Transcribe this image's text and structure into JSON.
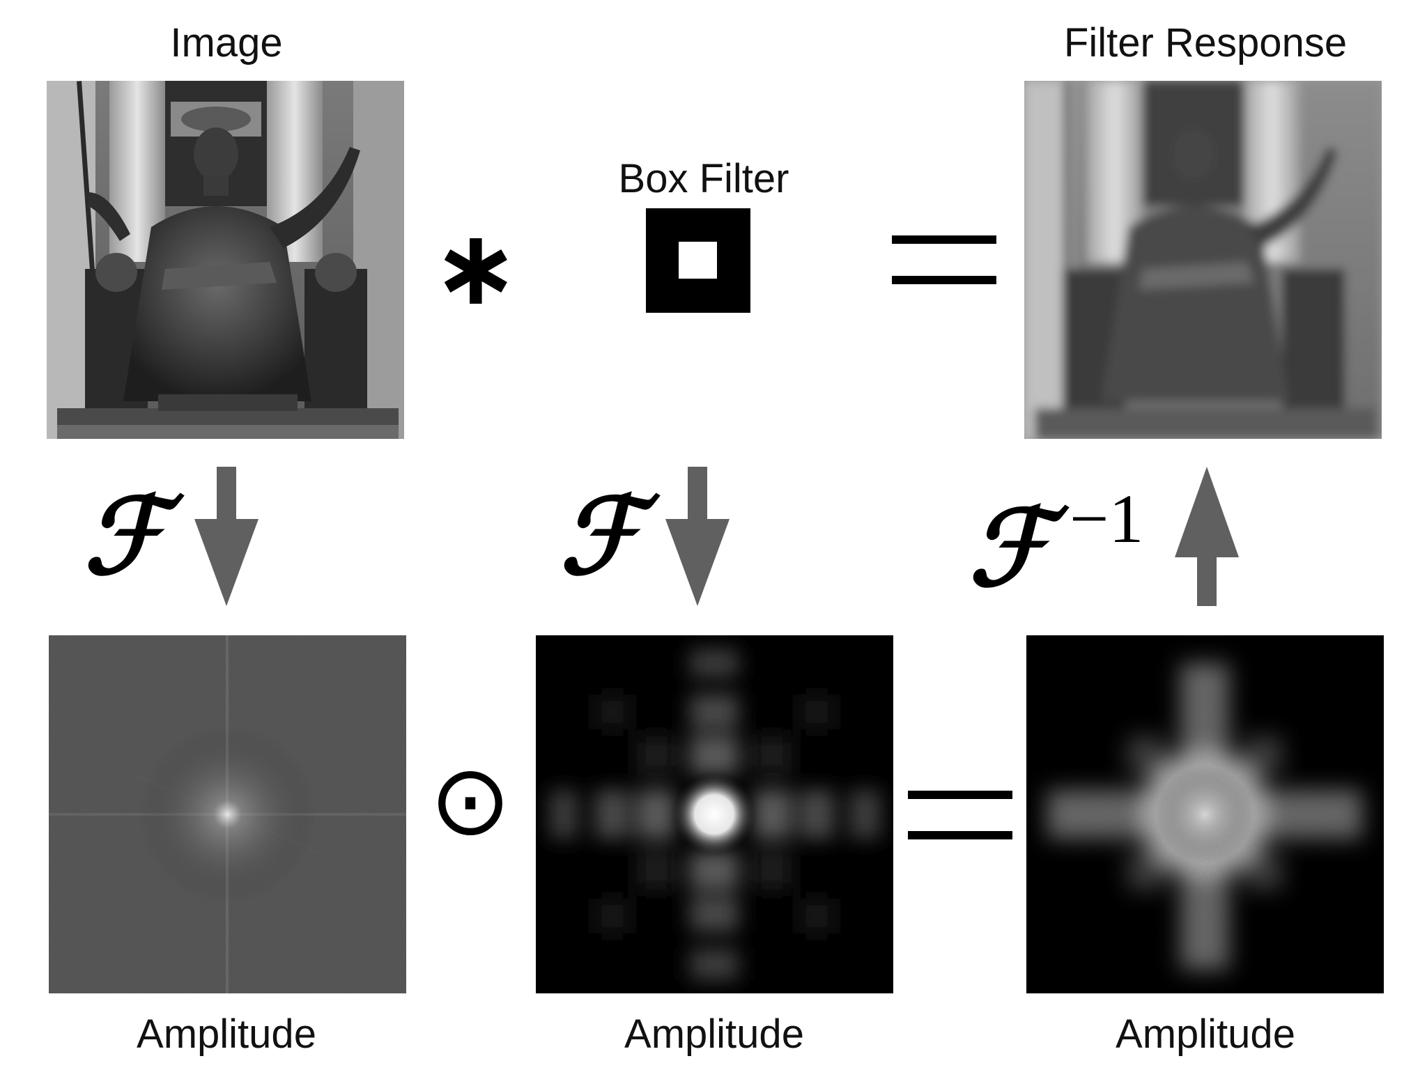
{
  "labels": {
    "image": "Image",
    "box_filter": "Box Filter",
    "filter_response": "Filter Response",
    "amplitude_left": "Amplitude",
    "amplitude_middle": "Amplitude",
    "amplitude_right": "Amplitude"
  },
  "operators": {
    "convolution": "∗",
    "equals_top": "=",
    "elementwise_product": "⊙",
    "equals_bottom": "="
  },
  "transforms": {
    "forward_left": "ℱ",
    "forward_middle": "ℱ",
    "inverse": "ℱ",
    "inverse_exponent": "−1"
  },
  "colors": {
    "arrow": "#606060",
    "background": "#ffffff",
    "text": "#111111"
  },
  "icons": {
    "arrow_down": "arrow-down-icon",
    "arrow_up": "arrow-up-icon"
  }
}
